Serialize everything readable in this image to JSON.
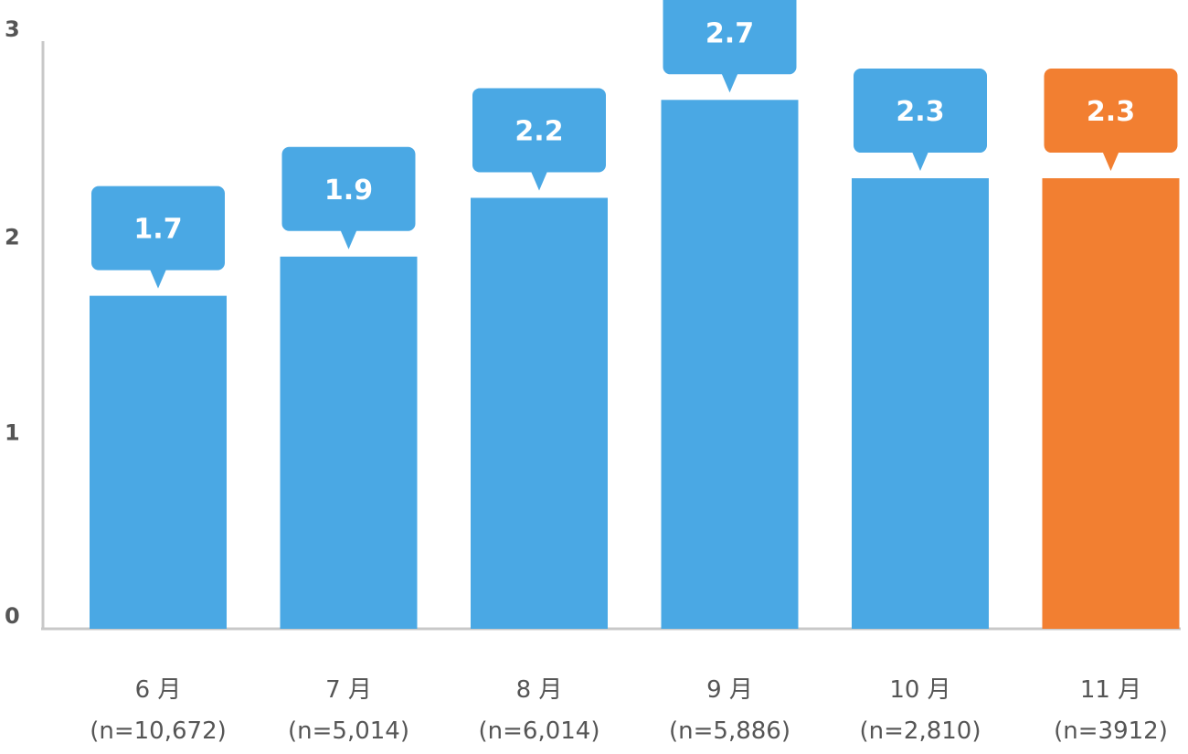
{
  "chart_data": {
    "type": "bar",
    "categories": [
      {
        "month": "6 月",
        "n": "(n=10,672)"
      },
      {
        "month": "7 月",
        "n": "(n=5,014)"
      },
      {
        "month": "8 月",
        "n": "(n=6,014)"
      },
      {
        "month": "9 月",
        "n": "(n=5,886)"
      },
      {
        "month": "10 月",
        "n": "(n=2,810)"
      },
      {
        "month": "11 月",
        "n": "(n=3912)"
      }
    ],
    "values": [
      1.7,
      1.9,
      2.2,
      2.7,
      2.3,
      2.3
    ],
    "value_labels": [
      "1.7",
      "1.9",
      "2.2",
      "2.7",
      "2.3",
      "2.3"
    ],
    "highlight_index": 5,
    "ylim": [
      0,
      3
    ],
    "yticks": [
      "0",
      "1",
      "2",
      "3"
    ],
    "grid": false,
    "colors": {
      "bar": "#4aa8e4",
      "highlight": "#f27f31",
      "axis": "#c8c8c8"
    }
  }
}
